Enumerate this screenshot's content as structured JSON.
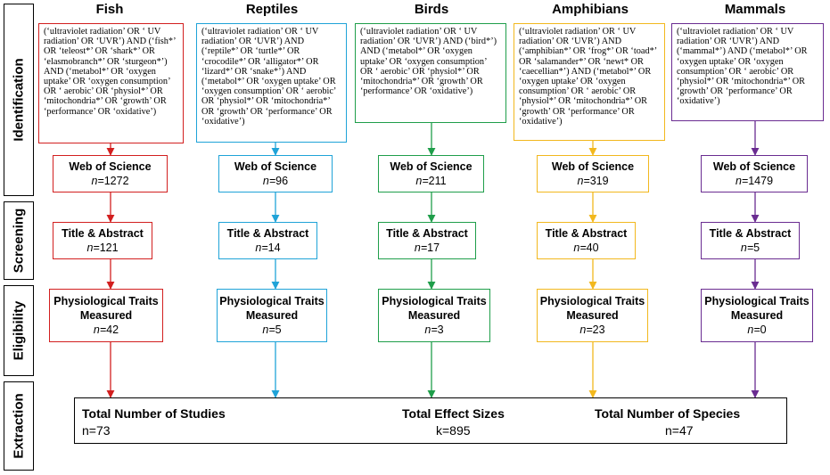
{
  "stages": [
    "Identification",
    "Screening",
    "Eligibility",
    "Extraction"
  ],
  "columns": [
    {
      "title": "Fish",
      "color": "#d21f1f",
      "query": "(‘ultraviolet radiation’ OR ‘ UV radiation’ OR ‘UVR’) AND (‘fish*’ OR ‘teleost*’ OR ‘shark*’ OR ‘elasmobranch*’ OR ‘sturgeon*’) AND (‘metabol*’ OR ‘oxygen uptake’ OR ‘oxygen consumption’ OR ‘ aerobic’ OR ‘physiol*’ OR ‘mitochondria*’ OR ‘growth’ OR ‘performance’ OR ‘oxidative’)",
      "wos_label": "Web of Science",
      "wos_n": "1272",
      "ta_label": "Title & Abstract",
      "ta_n": "121",
      "pt_label": "Physiological Traits Measured",
      "pt_n": "42"
    },
    {
      "title": "Reptiles",
      "color": "#1fa3d8",
      "query": "(‘ultraviolet radiation’ OR ‘ UV radiation’ OR ‘UVR’) AND (‘reptile*’ OR ‘turtle*’ OR ‘crocodile*’ OR ‘alligator*’ OR ‘lizard*’ OR ‘snake*’) AND (‘metabol*’ OR ‘oxygen uptake’ OR ‘oxygen consumption’ OR ‘ aerobic’ OR ‘physiol*’ OR ‘mitochondria*’ OR ‘growth’ OR ‘performance’ OR ‘oxidative’)",
      "wos_label": "Web of Science",
      "wos_n": "96",
      "ta_label": "Title & Abstract",
      "ta_n": "14",
      "pt_label": "Physiological Traits Measured",
      "pt_n": "5"
    },
    {
      "title": "Birds",
      "color": "#1f9e4a",
      "query": "(‘ultraviolet radiation’ OR ‘ UV radiation’ OR ‘UVR’) AND (‘bird*’) AND (‘metabol*’ OR ‘oxygen uptake’ OR ‘oxygen consumption’ OR ‘ aerobic’ OR ‘physiol*’ OR ‘mitochondria*’ OR ‘growth’ OR ‘performance’ OR ‘oxidative’)",
      "wos_label": "Web of Science",
      "wos_n": "211",
      "ta_label": "Title & Abstract",
      "ta_n": "17",
      "pt_label": "Physiological Traits Measured",
      "pt_n": "3"
    },
    {
      "title": "Amphibians",
      "color": "#f2b81e",
      "query": "(‘ultraviolet radiation’ OR ‘ UV radiation’ OR ‘UVR’) AND (‘amphibian*’ OR ‘frog*’ OR ‘toad*’ OR ‘salamander*’ OR ‘newt* OR ‘caecellian*’) AND (‘metabol*’ OR ‘oxygen uptake’ OR ‘oxygen consumption’ OR ‘ aerobic’ OR ‘physiol*’ OR ‘mitochondria*’ OR ‘growth’ OR ‘performance’ OR ‘oxidative’)",
      "wos_label": "Web of Science",
      "wos_n": "319",
      "ta_label": "Title & Abstract",
      "ta_n": "40",
      "pt_label": "Physiological Traits Measured",
      "pt_n": "23"
    },
    {
      "title": "Mammals",
      "color": "#6a2c91",
      "query": "(‘ultraviolet radiation’ OR ‘ UV radiation’ OR ‘UVR’) AND (‘mammal*’) AND (‘metabol*’ OR ‘oxygen uptake’ OR ‘oxygen consumption’ OR ‘ aerobic’ OR ‘physiol*’ OR ‘mitochondria*’ OR ‘growth’ OR ‘performance’ OR ‘oxidative’)",
      "wos_label": "Web of Science",
      "wos_n": "1479",
      "ta_label": "Title & Abstract",
      "ta_n": "5",
      "pt_label": "Physiological Traits Measured",
      "pt_n": "0"
    }
  ],
  "n_prefix": "n=",
  "totals": {
    "studies_label": "Total Number of Studies",
    "studies_value": "n=73",
    "effects_label": "Total Effect Sizes",
    "effects_value": "k=895",
    "species_label": "Total Number of Species",
    "species_value": "n=47"
  }
}
